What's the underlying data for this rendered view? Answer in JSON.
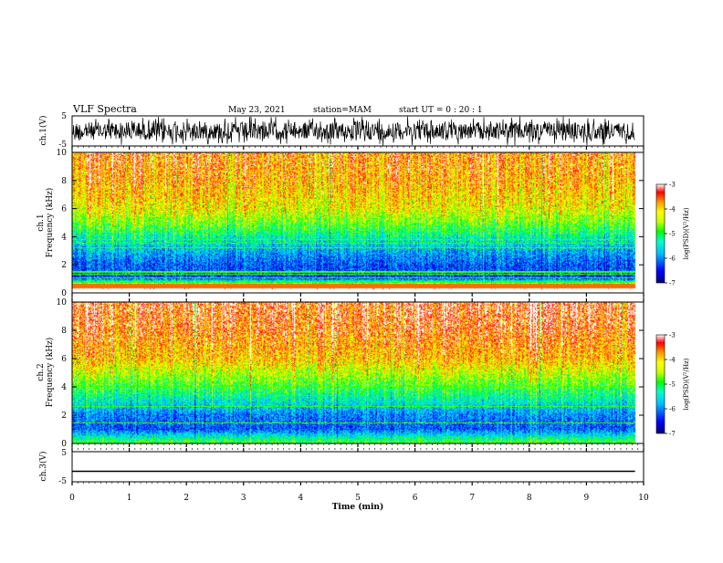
{
  "header": {
    "title": "VLF Spectra",
    "date": "May 23, 2021",
    "station": "station=MAM",
    "start": "start UT =  0 : 20 : 1"
  },
  "colors": {
    "ch1_trace": "#000000",
    "ch3_trace": "#000000",
    "colorbar": [
      "#00007f",
      "#0000ff",
      "#00bfff",
      "#00ffcc",
      "#00ff00",
      "#c8ff00",
      "#ffff00",
      "#ff9900",
      "#ff0000",
      "#ffffff"
    ]
  },
  "panels": {
    "ch1_wave": {
      "ylabel": "ch.1(V)",
      "ticks": [
        "5",
        "-5"
      ]
    },
    "ch1_spec": {
      "ylabel_top": "ch.1",
      "ylabel": "Frequency (kHz)",
      "ticks": [
        "0",
        "2",
        "4",
        "6",
        "8",
        "10"
      ]
    },
    "ch2_spec": {
      "ylabel_top": "ch.2",
      "ylabel": "Frequency (kHz)",
      "ticks": [
        "0",
        "2",
        "4",
        "6",
        "8",
        "10"
      ]
    },
    "ch3_wave": {
      "ylabel": "ch.3(V)",
      "ticks": [
        "5",
        "-5"
      ]
    }
  },
  "colorbar": {
    "label": "log(PSD)(V²/Hz)",
    "ticks": [
      "-3",
      "-4",
      "-5",
      "-6",
      "-7"
    ]
  },
  "xaxis": {
    "label": "Time (min)",
    "ticks": [
      "0",
      "1",
      "2",
      "3",
      "4",
      "5",
      "6",
      "7",
      "8",
      "9",
      "10"
    ]
  },
  "chart_data": [
    {
      "type": "line",
      "title": "VLF Spectra",
      "panel": "ch.1 waveform",
      "ylabel": "ch.1(V)",
      "xlabel": "Time (min)",
      "xlim": [
        0,
        10
      ],
      "ylim": [
        -5,
        5
      ],
      "data_end_min": 9.85,
      "note_amplitude_v": 5
    },
    {
      "type": "heatmap",
      "panel": "ch.1 spectrogram",
      "ylabel": "Frequency (kHz)",
      "xlim": [
        0,
        10
      ],
      "ylim": [
        0,
        10
      ],
      "data_end_min": 9.85,
      "colorbar_label": "log(PSD)(V²/Hz)",
      "colorbar_range": [
        -7,
        -3
      ],
      "frequency_profile_log_psd": [
        {
          "f_khz": 0.5,
          "log_psd": -3.8
        },
        {
          "f_khz": 1,
          "log_psd": -6.3
        },
        {
          "f_khz": 2,
          "log_psd": -6.2
        },
        {
          "f_khz": 3,
          "log_psd": -5.8
        },
        {
          "f_khz": 4,
          "log_psd": -5.3
        },
        {
          "f_khz": 5,
          "log_psd": -4.7
        },
        {
          "f_khz": 6,
          "log_psd": -4.2
        },
        {
          "f_khz": 8,
          "log_psd": -3.8
        },
        {
          "f_khz": 10,
          "log_psd": -3.6
        }
      ]
    },
    {
      "type": "heatmap",
      "panel": "ch.2 spectrogram",
      "ylabel": "Frequency (kHz)",
      "xlim": [
        0,
        10
      ],
      "ylim": [
        0,
        10
      ],
      "data_end_min": 9.85,
      "colorbar_label": "log(PSD)(V²/Hz)",
      "colorbar_range": [
        -7,
        -3
      ],
      "frequency_profile_log_psd": [
        {
          "f_khz": 0.5,
          "log_psd": -5.5
        },
        {
          "f_khz": 1,
          "log_psd": -6.2
        },
        {
          "f_khz": 2,
          "log_psd": -6.0
        },
        {
          "f_khz": 3,
          "log_psd": -5.4
        },
        {
          "f_khz": 4,
          "log_psd": -4.9
        },
        {
          "f_khz": 5,
          "log_psd": -4.4
        },
        {
          "f_khz": 6,
          "log_psd": -3.9
        },
        {
          "f_khz": 8,
          "log_psd": -3.5
        },
        {
          "f_khz": 10,
          "log_psd": -3.3
        }
      ]
    },
    {
      "type": "line",
      "panel": "ch.3 waveform",
      "ylabel": "ch.3(V)",
      "xlabel": "Time (min)",
      "xlim": [
        0,
        10
      ],
      "ylim": [
        -5,
        5
      ],
      "data_end_min": 9.85,
      "x": [
        0,
        9.85
      ],
      "y": [
        -1.5,
        -1.5
      ]
    }
  ]
}
